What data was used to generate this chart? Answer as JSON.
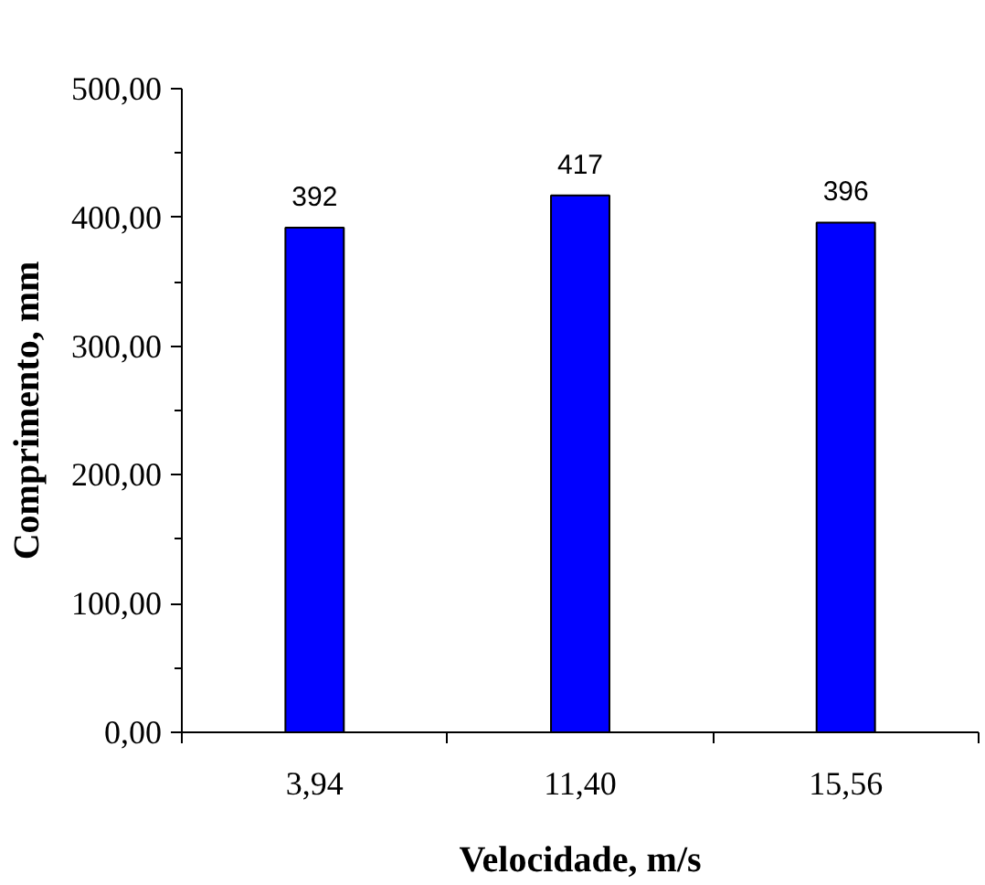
{
  "chart_data": {
    "type": "bar",
    "xlabel": "Velocidade, m/s",
    "ylabel": "Comprimento, mm",
    "categories": [
      "3,94",
      "11,40",
      "15,56"
    ],
    "values": [
      392,
      417,
      396
    ],
    "color": "#0000ff",
    "data_labels": true,
    "ylim": [
      0,
      500
    ],
    "yticks": [
      {
        "value": 0,
        "label": "0,00"
      },
      {
        "value": 50,
        "label": null
      },
      {
        "value": 100,
        "label": "100,00"
      },
      {
        "value": 150,
        "label": null
      },
      {
        "value": 200,
        "label": "200,00"
      },
      {
        "value": 250,
        "label": null
      },
      {
        "value": 300,
        "label": "300,00"
      },
      {
        "value": 350,
        "label": null
      },
      {
        "value": 400,
        "label": "400,00"
      },
      {
        "value": 450,
        "label": null
      },
      {
        "value": 500,
        "label": "500,00"
      }
    ],
    "grid": false
  }
}
